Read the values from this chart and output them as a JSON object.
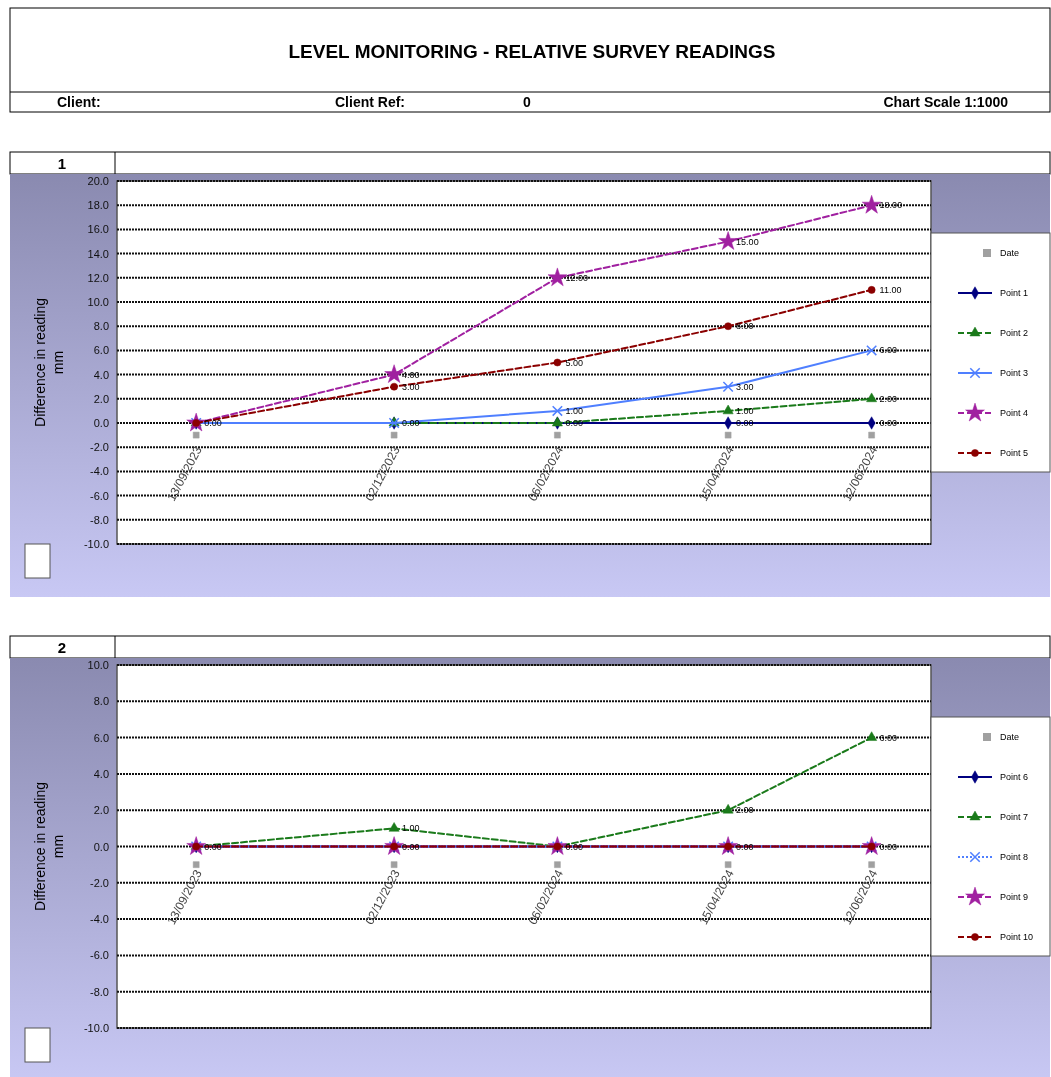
{
  "chart_data": [
    {
      "type": "line",
      "title": "LEVEL MONITORING - RELATIVE SURVEY READINGS",
      "subtitle": "1",
      "annotations": [
        "Client:",
        "Client Ref:",
        "0",
        "Chart Scale 1:1000"
      ],
      "ylabel": "Difference in reading\nmm",
      "x": [
        "2023-09-13",
        "2023-12-02",
        "2024-02-06",
        "2024-04-15",
        "2024-06-12"
      ],
      "xlim": [
        "2023-08-12",
        "2024-07-06"
      ],
      "xticks": [
        {
          "value": "2023-09-13",
          "label": "13/09/2023"
        },
        {
          "value": "2023-12-02",
          "label": "02/12/2023"
        },
        {
          "value": "2024-02-06",
          "label": "06/02/2024"
        },
        {
          "value": "2024-04-15",
          "label": "15/04/2024"
        },
        {
          "value": "2024-06-12",
          "label": "12/06/2024"
        }
      ],
      "ylim": [
        -10,
        20
      ],
      "yticks": [
        {
          "value": 20,
          "label": "20.0"
        },
        {
          "value": 18,
          "label": "18.0"
        },
        {
          "value": 16,
          "label": "16.0"
        },
        {
          "value": 14,
          "label": "14.0"
        },
        {
          "value": 12,
          "label": "12.0"
        },
        {
          "value": 10,
          "label": "10.0"
        },
        {
          "value": 8,
          "label": "8.0"
        },
        {
          "value": 6,
          "label": "6.0"
        },
        {
          "value": 4,
          "label": "4.0"
        },
        {
          "value": 2,
          "label": "2.0"
        },
        {
          "value": 0,
          "label": "0.0"
        },
        {
          "value": -2,
          "label": "-2.0"
        },
        {
          "value": -4,
          "label": "-4.0"
        },
        {
          "value": -6,
          "label": "-6.0"
        },
        {
          "value": -8,
          "label": "-8.0"
        },
        {
          "value": -10,
          "label": "-10.0"
        }
      ],
      "grid": "y",
      "legend": "right",
      "series": [
        {
          "name": "Date",
          "type": "scatter",
          "color": "#a0a0a0",
          "marker": "square",
          "values": [
            -1,
            -1,
            -1,
            -1,
            -1
          ]
        },
        {
          "name": "Point 1",
          "color": "#000080",
          "marker": "diamond",
          "line_style": "solid",
          "values": [
            0,
            0,
            0,
            0,
            0
          ],
          "value_labels": [
            null,
            null,
            null,
            "0.00",
            "0.00"
          ]
        },
        {
          "name": "Point 2",
          "color": "#1a7a1a",
          "marker": "triangle",
          "line_style": "dashed",
          "values": [
            0,
            0,
            0,
            1,
            2
          ],
          "value_labels": [
            null,
            null,
            "0.00",
            "1.00",
            "2.00"
          ]
        },
        {
          "name": "Point 3",
          "color": "#4f7fff",
          "marker": "cross",
          "line_style": "solid",
          "values": [
            0,
            0,
            1,
            3,
            6
          ],
          "value_labels": [
            null,
            "0.00",
            "1.00",
            "3.00",
            "6.00"
          ]
        },
        {
          "name": "Point 4",
          "color": "#a020a0",
          "marker": "star",
          "line_style": "dashed",
          "values": [
            0,
            4,
            12,
            15,
            18
          ],
          "value_labels": [
            null,
            "4.00",
            "12.00",
            "15.00",
            "18.00"
          ]
        },
        {
          "name": "Point 5",
          "color": "#8b0000",
          "marker": "circle",
          "line_style": "dashed",
          "values": [
            0,
            3,
            5,
            8,
            11
          ],
          "value_labels": [
            "0.00",
            "3.00",
            "5.00",
            "8.00",
            "11.00"
          ]
        }
      ]
    },
    {
      "type": "line",
      "title": "2",
      "ylabel": "Difference in reading\nmm",
      "x": [
        "2023-09-13",
        "2023-12-02",
        "2024-02-06",
        "2024-04-15",
        "2024-06-12"
      ],
      "xlim": [
        "2023-08-12",
        "2024-07-06"
      ],
      "xticks": [
        {
          "value": "2023-09-13",
          "label": "13/09/2023"
        },
        {
          "value": "2023-12-02",
          "label": "02/12/2023"
        },
        {
          "value": "2024-02-06",
          "label": "06/02/2024"
        },
        {
          "value": "2024-04-15",
          "label": "15/04/2024"
        },
        {
          "value": "2024-06-12",
          "label": "12/06/2024"
        }
      ],
      "ylim": [
        -10,
        10
      ],
      "yticks": [
        {
          "value": 10,
          "label": "10.0"
        },
        {
          "value": 8,
          "label": "8.0"
        },
        {
          "value": 6,
          "label": "6.0"
        },
        {
          "value": 4,
          "label": "4.0"
        },
        {
          "value": 2,
          "label": "2.0"
        },
        {
          "value": 0,
          "label": "0.0"
        },
        {
          "value": -2,
          "label": "-2.0"
        },
        {
          "value": -4,
          "label": "-4.0"
        },
        {
          "value": -6,
          "label": "-6.0"
        },
        {
          "value": -8,
          "label": "-8.0"
        },
        {
          "value": -10,
          "label": "-10.0"
        }
      ],
      "grid": "y",
      "legend": "right",
      "series": [
        {
          "name": "Date",
          "type": "scatter",
          "color": "#a0a0a0",
          "marker": "square",
          "values": [
            -1,
            -1,
            -1,
            -1,
            -1
          ]
        },
        {
          "name": "Point 6",
          "color": "#000080",
          "marker": "diamond",
          "line_style": "solid",
          "values": [
            0,
            0,
            0,
            0,
            0
          ]
        },
        {
          "name": "Point 7",
          "color": "#1a7a1a",
          "marker": "triangle",
          "line_style": "dashed",
          "values": [
            0,
            1,
            0,
            2,
            6
          ],
          "value_labels": [
            null,
            "1.00",
            null,
            "2.00",
            "6.00"
          ]
        },
        {
          "name": "Point 8",
          "color": "#4f7fff",
          "marker": "cross",
          "line_style": "dotted",
          "values": [
            0,
            0,
            0,
            0,
            0
          ]
        },
        {
          "name": "Point 9",
          "color": "#a020a0",
          "marker": "star",
          "line_style": "dashed",
          "values": [
            0,
            0,
            0,
            0,
            0
          ]
        },
        {
          "name": "Point 10",
          "color": "#8b0000",
          "marker": "circle",
          "line_style": "dashed",
          "values": [
            0,
            0,
            0,
            0,
            0
          ],
          "value_labels": [
            "0.00",
            "0.00",
            "0.00",
            "0.00",
            "0.00"
          ]
        }
      ]
    }
  ]
}
